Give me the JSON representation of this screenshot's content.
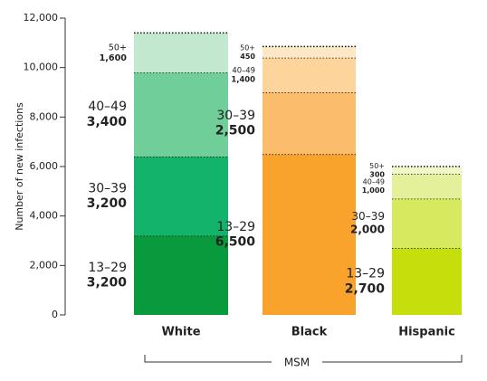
{
  "chart_data": {
    "type": "stacked-bar",
    "y_label": "Number of new infections",
    "group_label": "MSM",
    "categories": [
      "White",
      "Black",
      "Hispanic"
    ],
    "series": [
      {
        "name": "13–29",
        "colors": [
          "#0a9a3e",
          "#f9a22c",
          "#c6de0b"
        ],
        "values": [
          3200,
          6500,
          2700
        ],
        "value_labels": [
          "3,200",
          "6,500",
          "2,700"
        ]
      },
      {
        "name": "30–39",
        "colors": [
          "#13b36b",
          "#fbbd6c",
          "#d7e95f"
        ],
        "values": [
          3200,
          2500,
          2000
        ],
        "value_labels": [
          "3,200",
          "2,500",
          "2,000"
        ]
      },
      {
        "name": "40–49",
        "colors": [
          "#70cf98",
          "#fdd59c",
          "#e4f09a"
        ],
        "values": [
          3400,
          1400,
          1000
        ],
        "value_labels": [
          "3,400",
          "1,400",
          "1,000"
        ]
      },
      {
        "name": "50+",
        "colors": [
          "#c2e9d0",
          "#fde7c6",
          "#f0f7c9"
        ],
        "values": [
          1600,
          450,
          300
        ],
        "value_labels": [
          "1,600",
          "450",
          "300"
        ]
      }
    ],
    "ylim": [
      0,
      12000
    ],
    "yticks": [
      0,
      {
        "value": 2000,
        "label": "2,000"
      },
      {
        "value": 4000,
        "label": "4,000"
      },
      {
        "value": 6000,
        "label": "6,000"
      },
      {
        "value": 8000,
        "label": "8,000"
      },
      {
        "value": 10000,
        "label": "10,000"
      },
      {
        "value": 12000,
        "label": "12,000"
      }
    ]
  }
}
